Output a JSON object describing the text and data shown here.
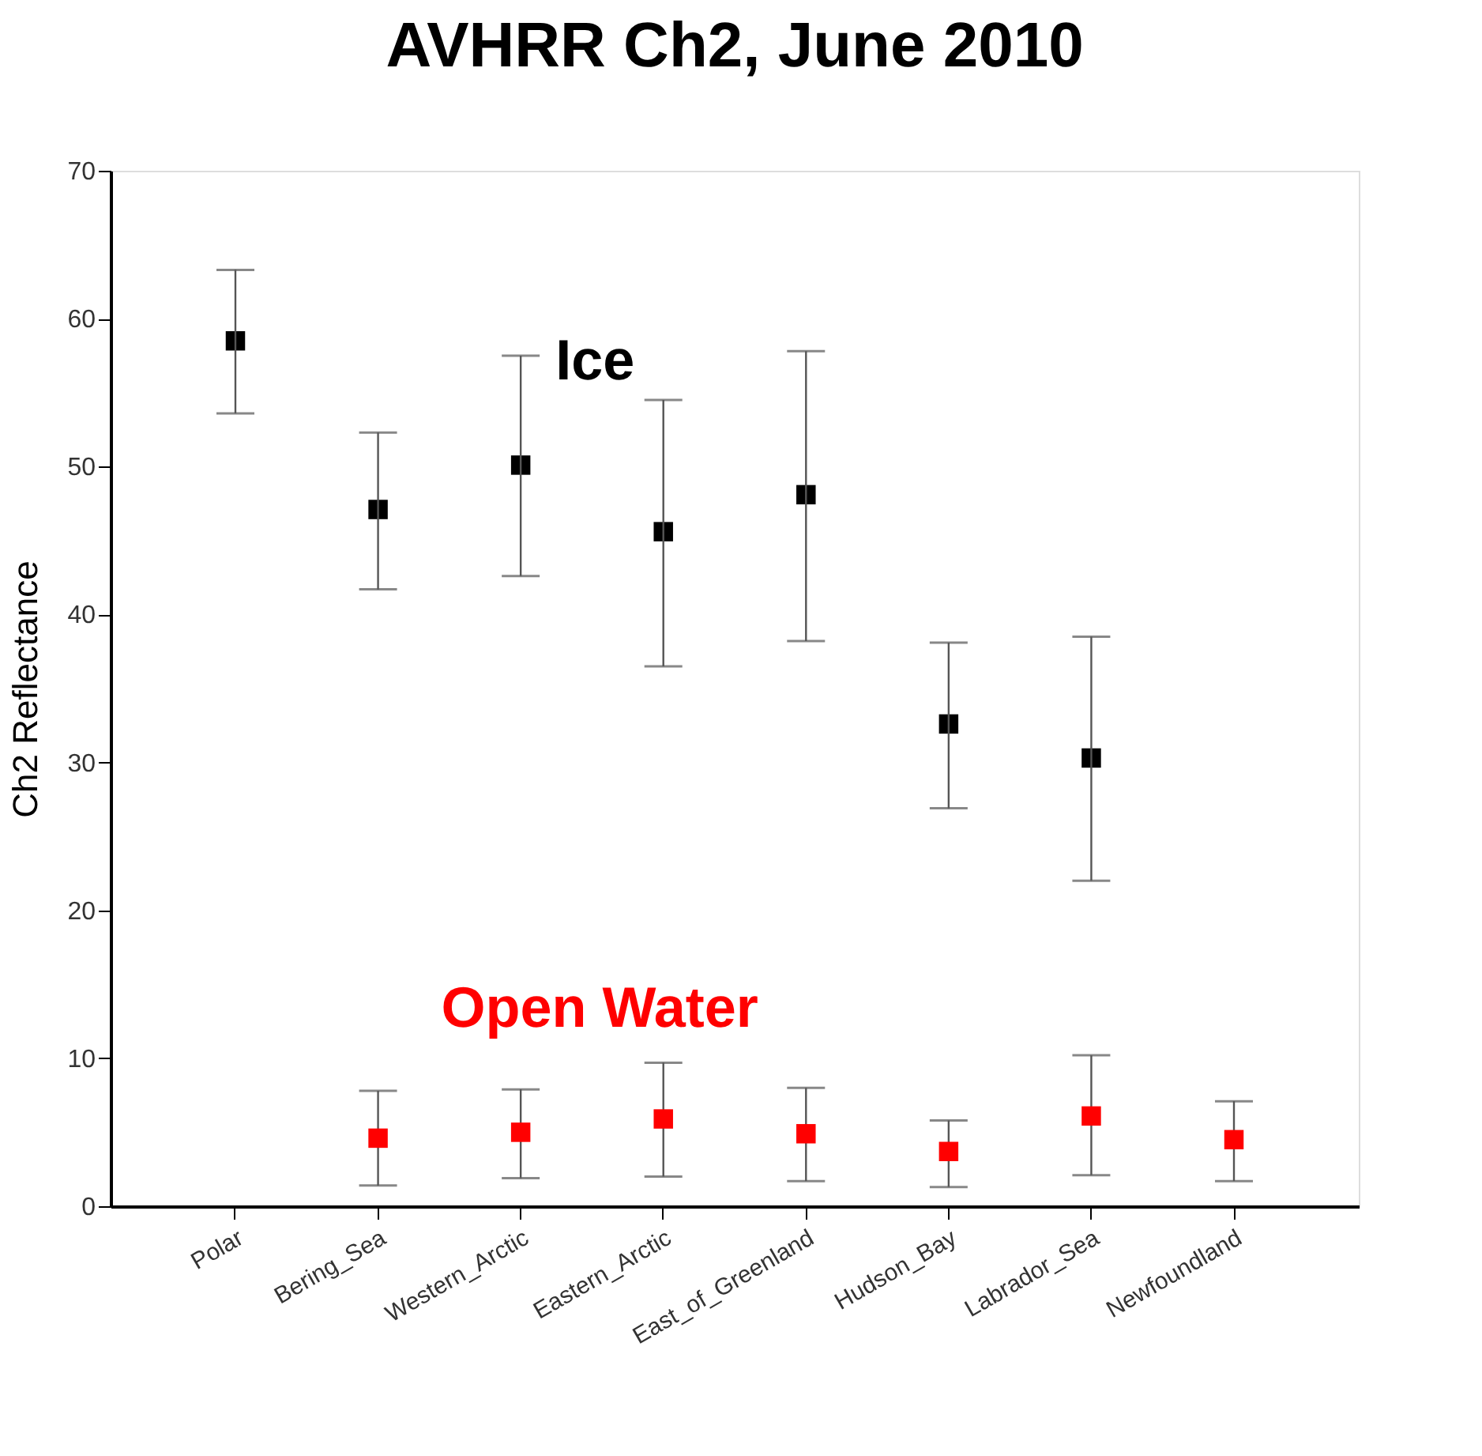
{
  "chart_data": {
    "type": "scatter",
    "title": "AVHRR Ch2, June 2010",
    "ylabel": "Ch2 Reflectance",
    "categories": [
      "Polar",
      "Bering_Sea",
      "Western_Arctic",
      "Eastern_Arctic",
      "East_of_Greenland",
      "Hudson_Bay",
      "Labrador_Sea",
      "Newfoundland"
    ],
    "series": [
      {
        "name": "Ice",
        "color": "#000000",
        "values": [
          58.5,
          47.1,
          50.1,
          45.6,
          48.1,
          32.6,
          30.3,
          null
        ],
        "errors": [
          [
            53.6,
            63.3
          ],
          [
            41.7,
            52.3
          ],
          [
            42.6,
            57.5
          ],
          [
            36.5,
            54.5
          ],
          [
            38.2,
            57.8
          ],
          [
            26.9,
            38.1
          ],
          [
            22.0,
            38.5
          ],
          null
        ]
      },
      {
        "name": "Open Water",
        "color": "#ff0000",
        "values": [
          null,
          4.6,
          5.0,
          5.9,
          4.9,
          3.7,
          6.1,
          4.5
        ],
        "errors": [
          null,
          [
            1.4,
            7.8
          ],
          [
            1.9,
            7.9
          ],
          [
            2.0,
            9.7
          ],
          [
            1.7,
            8.0
          ],
          [
            1.3,
            5.8
          ],
          [
            2.1,
            10.2
          ],
          [
            1.7,
            7.1
          ]
        ]
      }
    ],
    "ylim": [
      0,
      70
    ],
    "yticks": [
      0,
      10,
      20,
      30,
      40,
      50,
      60,
      70
    ],
    "marker": "square"
  }
}
